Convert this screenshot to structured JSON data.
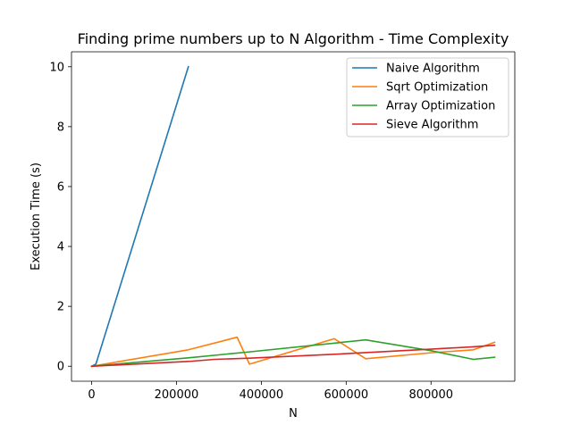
{
  "chart_data": {
    "type": "line",
    "title": "Finding prime numbers up to N Algorithm - Time Complexity",
    "xlabel": "N",
    "ylabel": "Execution Time (s)",
    "xlim": [
      -47500,
      997500
    ],
    "ylim": [
      -0.5,
      10.5
    ],
    "xticks": [
      0,
      200000,
      400000,
      600000,
      800000
    ],
    "xtick_labels": [
      "0",
      "200000",
      "400000",
      "600000",
      "800000"
    ],
    "yticks": [
      0,
      2,
      4,
      6,
      8,
      10
    ],
    "ytick_labels": [
      "0",
      "2",
      "4",
      "6",
      "8",
      "10"
    ],
    "grid": false,
    "legend_position": "top-right",
    "series": [
      {
        "name": "Naive Algorithm",
        "color": "#1f77b4",
        "x": [
          0,
          10000,
          228000
        ],
        "y": [
          0,
          0.07,
          10.0
        ]
      },
      {
        "name": "Sqrt Optimization",
        "color": "#ff7f0e",
        "x": [
          0,
          228000,
          343000,
          372000,
          572000,
          646000,
          800000,
          900000,
          950000
        ],
        "y": [
          0,
          0.55,
          0.97,
          0.07,
          0.92,
          0.25,
          0.45,
          0.55,
          0.8
        ]
      },
      {
        "name": "Array Optimization",
        "color": "#2ca02c",
        "x": [
          0,
          228000,
          372000,
          646000,
          800000,
          900000,
          950000
        ],
        "y": [
          0,
          0.28,
          0.48,
          0.88,
          0.52,
          0.23,
          0.3
        ]
      },
      {
        "name": "Sieve Algorithm",
        "color": "#d62728",
        "x": [
          0,
          228000,
          290000,
          372000,
          572000,
          800000,
          900000,
          950000
        ],
        "y": [
          0,
          0.16,
          0.23,
          0.27,
          0.4,
          0.57,
          0.65,
          0.7
        ]
      }
    ]
  }
}
